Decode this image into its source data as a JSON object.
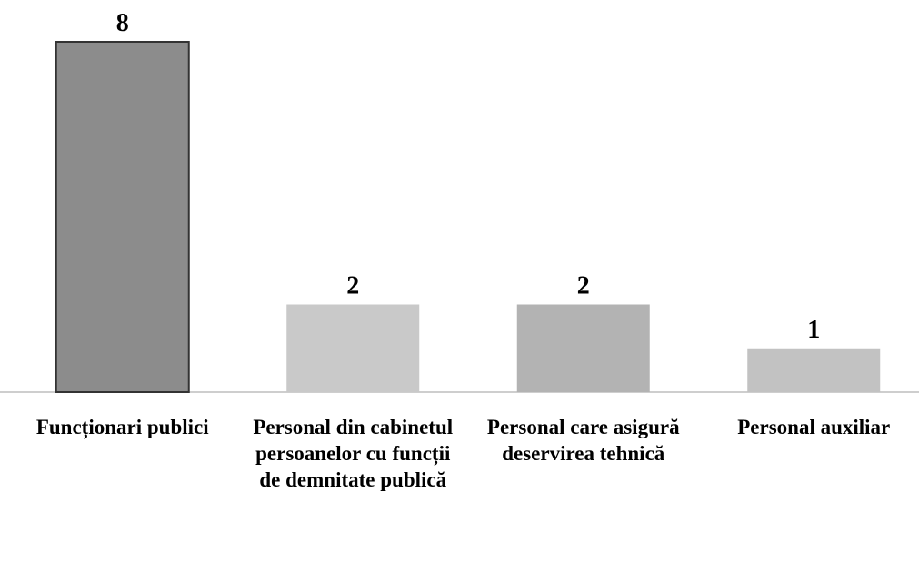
{
  "chart_data": {
    "type": "bar",
    "categories": [
      "Funcționari publici",
      "Personal din cabinetul persoanelor cu funcții de demnitate publică",
      "Personal care asigură deservirea tehnică",
      "Personal auxiliar"
    ],
    "values": [
      8,
      2,
      2,
      1
    ],
    "colors": [
      "#8c8c8c",
      "#c9c9c9",
      "#b3b3b3",
      "#c2c2c2"
    ],
    "ylim": [
      0,
      8
    ]
  }
}
